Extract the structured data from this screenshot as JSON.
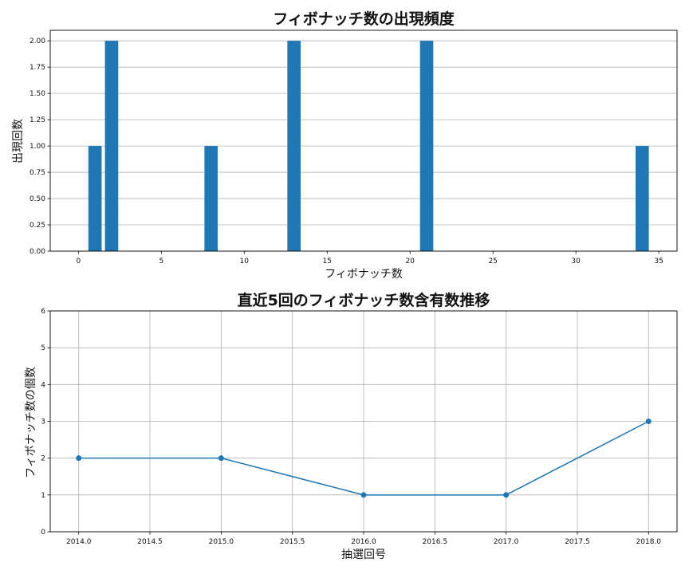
{
  "chart_data": [
    {
      "type": "bar",
      "title": "フィボナッチ数の出現頻度",
      "xlabel": "フィボナッチ数",
      "ylabel": "出現回数",
      "x": [
        1,
        2,
        8,
        13,
        21,
        34
      ],
      "values": [
        1,
        2,
        1,
        2,
        2,
        1
      ],
      "xlim": [
        -1.7,
        36.1
      ],
      "ylim": [
        0,
        2.1
      ],
      "xticks": [
        0,
        5,
        10,
        15,
        20,
        25,
        30,
        35
      ],
      "xtick_labels": [
        "0",
        "5",
        "10",
        "15",
        "20",
        "25",
        "30",
        "35"
      ],
      "yticks": [
        0,
        0.25,
        0.5,
        0.75,
        1.0,
        1.25,
        1.5,
        1.75,
        2.0
      ],
      "ytick_labels": [
        "0.00",
        "0.25",
        "0.50",
        "0.75",
        "1.00",
        "1.25",
        "1.50",
        "1.75",
        "2.00"
      ],
      "bar_width": 0.8,
      "grid": "y",
      "color": "#1f77b4"
    },
    {
      "type": "line",
      "title": "直近5回のフィボナッチ数含有数推移",
      "xlabel": "抽選回号",
      "ylabel": "フィボナッチ数の個数",
      "x": [
        2014.0,
        2015.0,
        2016.0,
        2017.0,
        2018.0
      ],
      "values": [
        2,
        2,
        1,
        1,
        3
      ],
      "xlim": [
        2013.8,
        2018.2
      ],
      "ylim": [
        0,
        6
      ],
      "xticks": [
        2014.0,
        2014.5,
        2015.0,
        2015.5,
        2016.0,
        2016.5,
        2017.0,
        2017.5,
        2018.0
      ],
      "xtick_labels": [
        "2014.0",
        "2014.5",
        "2015.0",
        "2015.5",
        "2016.0",
        "2016.5",
        "2017.0",
        "2017.5",
        "2018.0"
      ],
      "yticks": [
        0,
        1,
        2,
        3,
        4,
        5,
        6
      ],
      "ytick_labels": [
        "0",
        "1",
        "2",
        "3",
        "4",
        "5",
        "6"
      ],
      "grid": "both",
      "marker": "circle",
      "color": "#1f77b4"
    }
  ]
}
